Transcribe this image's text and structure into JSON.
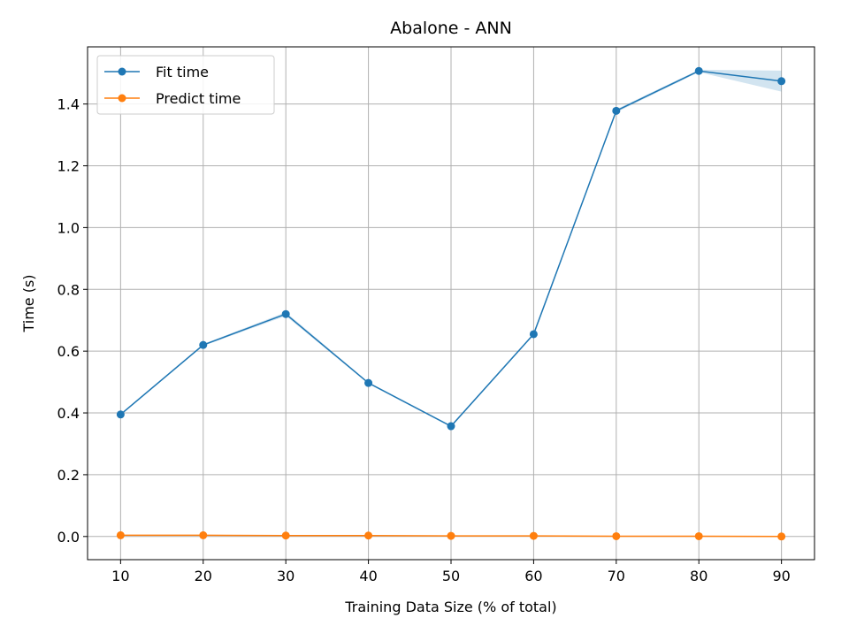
{
  "chart_data": {
    "type": "line",
    "title": "Abalone - ANN",
    "xlabel": "Training Data Size (% of total)",
    "ylabel": "Time (s)",
    "x": [
      10,
      20,
      30,
      40,
      50,
      60,
      70,
      80,
      90
    ],
    "xlim": [
      6,
      94
    ],
    "ylim": [
      -0.075,
      1.585
    ],
    "xticks": [
      10,
      20,
      30,
      40,
      50,
      60,
      70,
      80,
      90
    ],
    "xtick_labels": [
      "10",
      "20",
      "30",
      "40",
      "50",
      "60",
      "70",
      "80",
      "90"
    ],
    "yticks": [
      0.0,
      0.2,
      0.4,
      0.6,
      0.8,
      1.0,
      1.2,
      1.4
    ],
    "ytick_labels": [
      "0.0",
      "0.2",
      "0.4",
      "0.6",
      "0.8",
      "1.0",
      "1.2",
      "1.4"
    ],
    "grid": true,
    "legend_position": "top-left",
    "series": [
      {
        "name": "Fit time",
        "color": "#1f77b4",
        "values": [
          0.395,
          0.62,
          0.72,
          0.497,
          0.357,
          0.655,
          1.378,
          1.507,
          1.474
        ],
        "band_lower": [
          0.392,
          0.617,
          0.714,
          0.494,
          0.354,
          0.652,
          1.373,
          1.503,
          1.44
        ],
        "band_upper": [
          0.398,
          0.623,
          0.726,
          0.5,
          0.36,
          0.658,
          1.383,
          1.511,
          1.508
        ]
      },
      {
        "name": "Predict time",
        "color": "#ff7f0e",
        "values": [
          0.004,
          0.004,
          0.003,
          0.003,
          0.002,
          0.002,
          0.001,
          0.001,
          0.0
        ]
      }
    ]
  }
}
